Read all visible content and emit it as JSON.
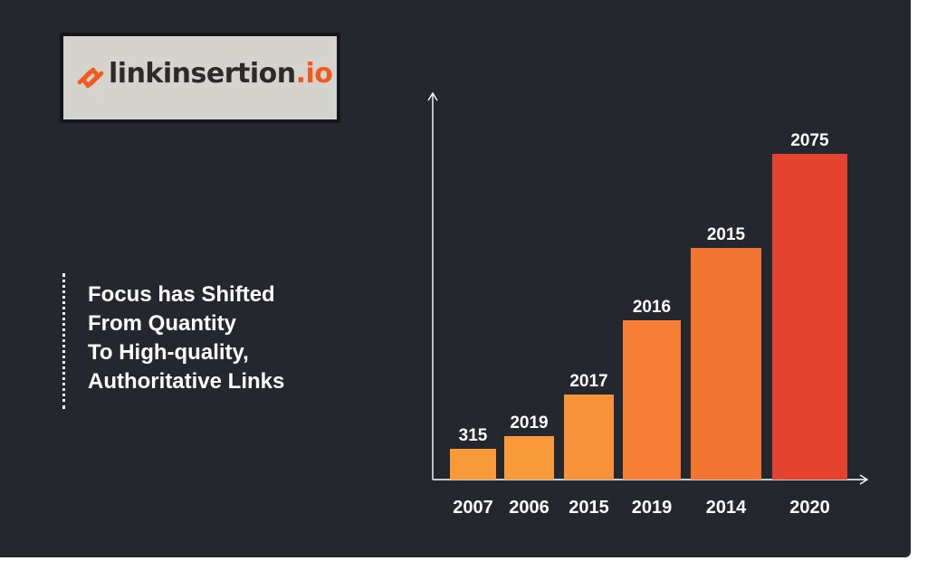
{
  "logo": {
    "brand_name": "linkinsertion",
    "brand_suffix": ".io",
    "mark_icon": "chain-link-icon",
    "accent_color": "#f2591d"
  },
  "headline": {
    "lines": [
      "Focus has Shifted",
      "From Quantity",
      "To High-quality,",
      "Authoritative Links"
    ]
  },
  "chart_data": {
    "type": "bar",
    "categories": [
      "2007",
      "2006",
      "2015",
      "2019",
      "2014",
      "2020"
    ],
    "values": [
      315,
      2019,
      2017,
      2016,
      2015,
      2075
    ],
    "bar_heights_relative": [
      0.085,
      0.12,
      0.235,
      0.44,
      0.64,
      0.9
    ],
    "data_labels": [
      "315",
      "2019",
      "2017",
      "2016",
      "2015",
      "2075"
    ],
    "colors": [
      "#f89a3a",
      "#f89a3a",
      "#f7913a",
      "#f47f35",
      "#f27431",
      "#e4432f"
    ],
    "axis_color": "#ffffff",
    "title": "",
    "xlabel": "",
    "ylabel": "",
    "grid": false,
    "legend": "none"
  }
}
